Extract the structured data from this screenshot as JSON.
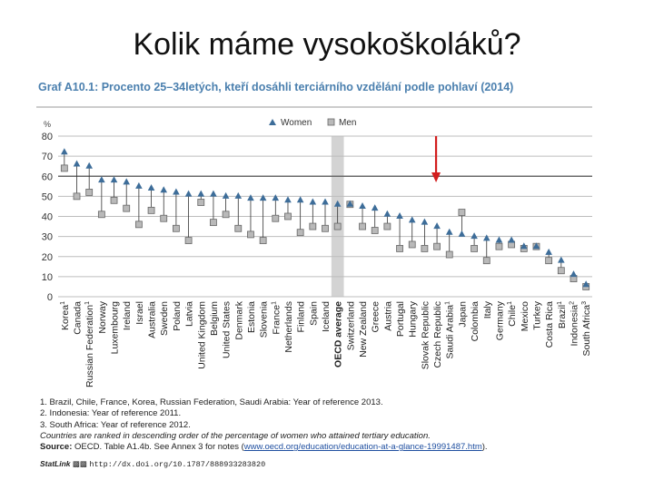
{
  "slide_title": "Kolik máme vysokoškoláků?",
  "chart_title": "Graf A10.1: Procento 25–34letých, kteří dosáhli terciárního vzdělání podle pohlaví (2014)",
  "colors": {
    "women": "#3d6d99",
    "men": "#b9b9b9",
    "title": "#4a7fae",
    "arrow": "#d21e1e",
    "oecd_band": "#d3d3d3"
  },
  "chart_data": {
    "type": "scatter",
    "ylabel": "%",
    "ylim": [
      0,
      80
    ],
    "yticks": [
      0,
      10,
      20,
      30,
      40,
      50,
      60,
      70,
      80
    ],
    "legend": {
      "position": "top-center",
      "items": [
        "Women",
        "Men"
      ]
    },
    "categories": [
      {
        "name": "Korea",
        "sup": "1"
      },
      {
        "name": "Canada",
        "sup": ""
      },
      {
        "name": "Russian Federation",
        "sup": "1"
      },
      {
        "name": "Norway",
        "sup": ""
      },
      {
        "name": "Luxembourg",
        "sup": ""
      },
      {
        "name": "Ireland",
        "sup": ""
      },
      {
        "name": "Israel",
        "sup": ""
      },
      {
        "name": "Australia",
        "sup": ""
      },
      {
        "name": "Sweden",
        "sup": ""
      },
      {
        "name": "Poland",
        "sup": ""
      },
      {
        "name": "Latvia",
        "sup": ""
      },
      {
        "name": "United Kingdom",
        "sup": ""
      },
      {
        "name": "Belgium",
        "sup": ""
      },
      {
        "name": "United States",
        "sup": ""
      },
      {
        "name": "Denmark",
        "sup": ""
      },
      {
        "name": "Estonia",
        "sup": ""
      },
      {
        "name": "Slovenia",
        "sup": ""
      },
      {
        "name": "France",
        "sup": "1"
      },
      {
        "name": "Netherlands",
        "sup": ""
      },
      {
        "name": "Finland",
        "sup": ""
      },
      {
        "name": "Spain",
        "sup": ""
      },
      {
        "name": "Iceland",
        "sup": ""
      },
      {
        "name": "OECD average",
        "sup": "",
        "bold": true
      },
      {
        "name": "Switzerland",
        "sup": ""
      },
      {
        "name": "New Zealand",
        "sup": ""
      },
      {
        "name": "Greece",
        "sup": ""
      },
      {
        "name": "Austria",
        "sup": ""
      },
      {
        "name": "Portugal",
        "sup": ""
      },
      {
        "name": "Hungary",
        "sup": ""
      },
      {
        "name": "Slovak Republic",
        "sup": ""
      },
      {
        "name": "Czech Republic",
        "sup": ""
      },
      {
        "name": "Saudi Arabia",
        "sup": "1"
      },
      {
        "name": "Japan",
        "sup": ""
      },
      {
        "name": "Colombia",
        "sup": ""
      },
      {
        "name": "Italy",
        "sup": ""
      },
      {
        "name": "Germany",
        "sup": ""
      },
      {
        "name": "Chile",
        "sup": "1"
      },
      {
        "name": "Mexico",
        "sup": ""
      },
      {
        "name": "Turkey",
        "sup": ""
      },
      {
        "name": "Costa Rica",
        "sup": ""
      },
      {
        "name": "Brazil",
        "sup": "1"
      },
      {
        "name": "Indonesia",
        "sup": "2"
      },
      {
        "name": "South Africa",
        "sup": "3"
      }
    ],
    "series": [
      {
        "name": "Women",
        "marker": "triangle",
        "values": [
          72,
          66,
          65,
          58,
          58,
          57,
          55,
          54,
          53,
          52,
          51,
          51,
          51,
          50,
          50,
          49,
          49,
          49,
          48,
          48,
          47,
          47,
          46,
          46,
          45,
          44,
          41,
          40,
          38,
          37,
          35,
          32,
          31,
          30,
          29,
          28,
          28,
          25,
          25,
          22,
          18,
          11,
          6
        ]
      },
      {
        "name": "Men",
        "marker": "square",
        "values": [
          64,
          50,
          52,
          41,
          48,
          44,
          36,
          43,
          39,
          34,
          28,
          47,
          37,
          41,
          34,
          31,
          28,
          39,
          40,
          32,
          35,
          34,
          35,
          46,
          35,
          33,
          35,
          24,
          26,
          24,
          25,
          21,
          42,
          24,
          18,
          25,
          26,
          24,
          25,
          18,
          13,
          9,
          5
        ]
      }
    ],
    "highlight": {
      "category": "OECD average",
      "arrow_to": "Czech Republic"
    }
  },
  "footnotes": {
    "line1": "1. Brazil, Chile, France, Korea, Russian Federation, Saudi Arabia: Year of reference 2013.",
    "line2": "2. Indonesia: Year of reference 2011.",
    "line3": "3. South Africa: Year of reference 2012.",
    "line4": "Countries are ranked in descending order of the percentage of women who attained tertiary education.",
    "source_label": "Source:",
    "source_text": " OECD. Table A1.4b. See Annex 3 for notes (",
    "source_link": "www.oecd.org/education/education-at-a-glance-19991487.htm",
    "source_end": ")."
  },
  "statlink": {
    "logo": "StatLink",
    "url": "http://dx.doi.org/10.1787/888933283820"
  }
}
